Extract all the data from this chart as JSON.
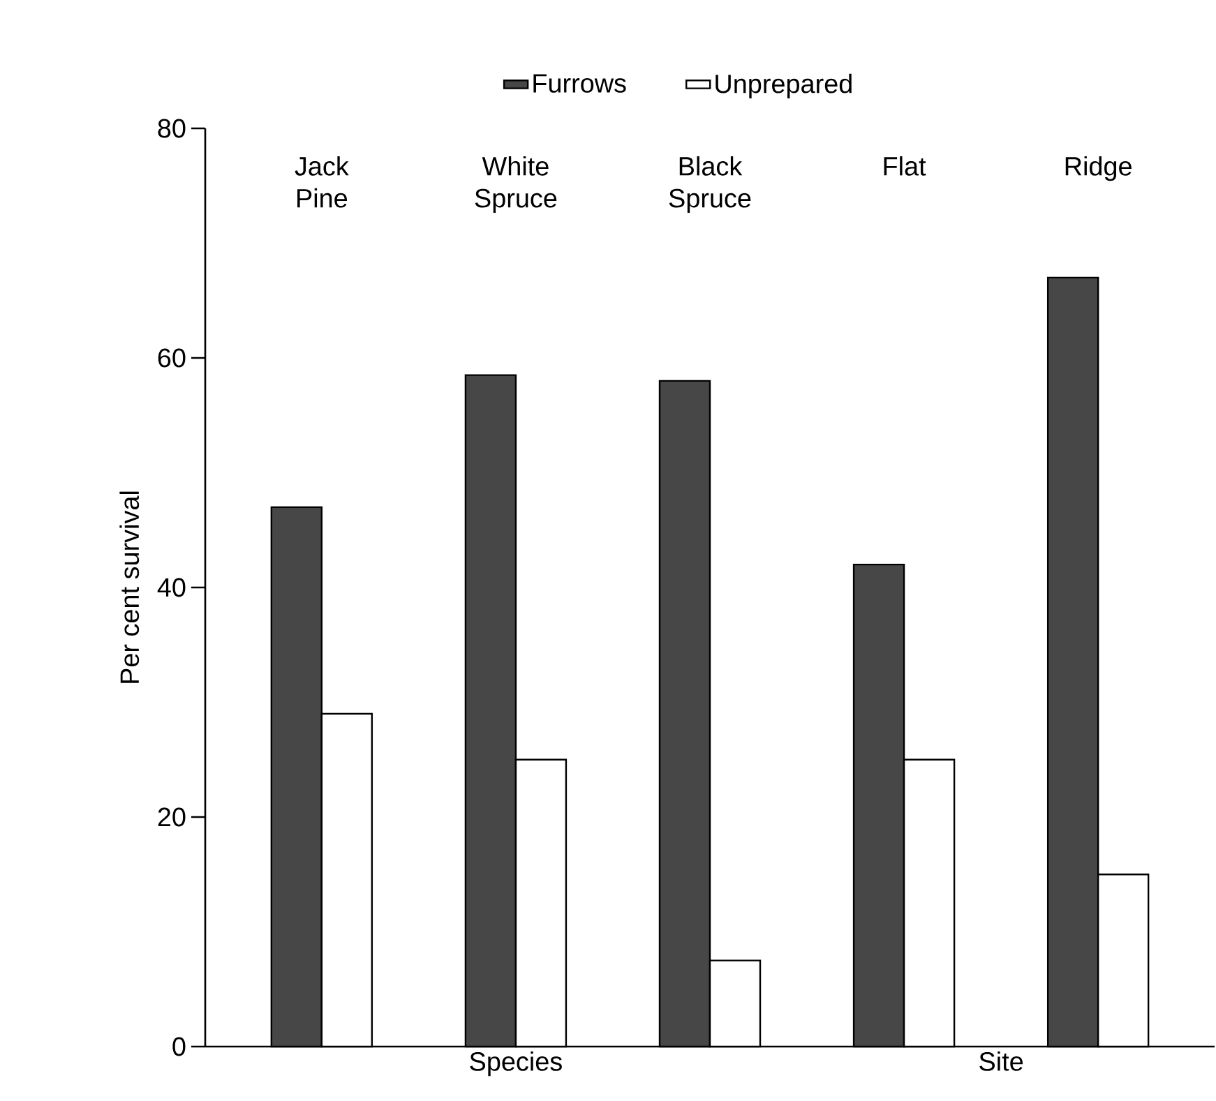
{
  "chart_data": {
    "type": "bar",
    "categories": [
      "Jack Pine",
      "White Spruce",
      "Black Spruce",
      "Flat",
      "Ridge"
    ],
    "ylabel": "Per cent survival",
    "series": [
      {
        "name": "Furrows",
        "color": "#474747",
        "values": [
          47,
          58.5,
          58,
          42,
          67
        ]
      },
      {
        "name": "Unprepared",
        "color": "#ffffff",
        "values": [
          29,
          25,
          7.5,
          25,
          15
        ]
      }
    ],
    "ylim": [
      0,
      80
    ],
    "yticks": [
      0,
      20,
      40,
      60,
      80
    ],
    "legend": "top",
    "annotations": [
      "Species",
      "Site"
    ]
  }
}
